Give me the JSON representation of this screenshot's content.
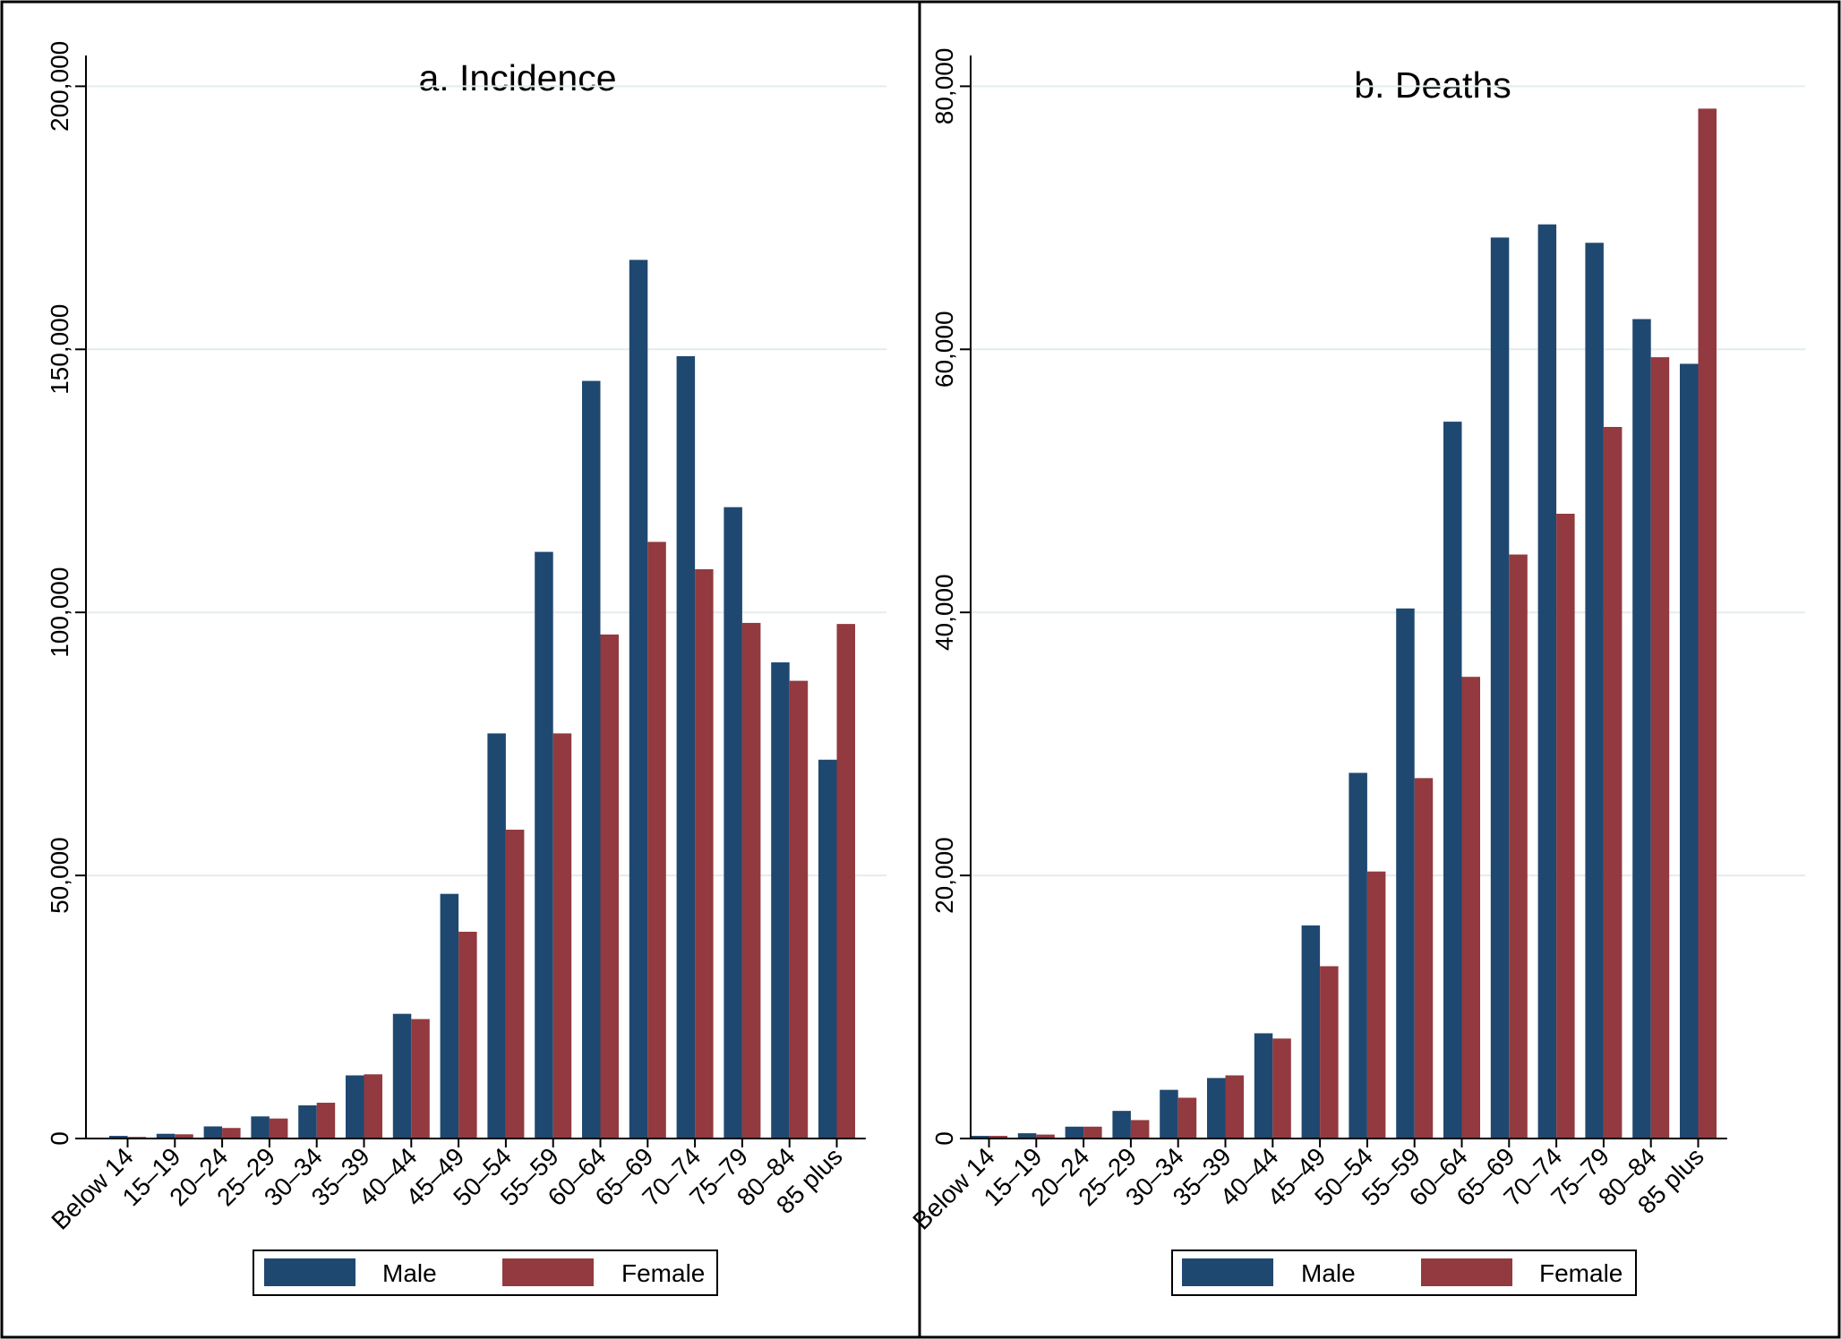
{
  "figure": {
    "colors": {
      "male": "#1f4870",
      "female": "#923a3f",
      "grid": "#e3ecee",
      "frame": "#000000"
    }
  },
  "chart_data": [
    {
      "type": "bar",
      "title": "a. Incidence",
      "xlabel": "",
      "ylabel": "",
      "categories": [
        "Below 14",
        "15–19",
        "20–24",
        "25–29",
        "30–34",
        "35–39",
        "40–44",
        "45–49",
        "50–54",
        "55–59",
        "60–64",
        "65–69",
        "70–74",
        "75–79",
        "80–84",
        "85 plus"
      ],
      "series": [
        {
          "name": "Male",
          "values": [
            500,
            900,
            2300,
            4200,
            6300,
            12000,
            23700,
            46500,
            77000,
            111500,
            144000,
            167000,
            148700,
            120000,
            90500,
            72000
          ]
        },
        {
          "name": "Female",
          "values": [
            300,
            800,
            2000,
            3800,
            6800,
            12200,
            22700,
            39300,
            58700,
            77000,
            95800,
            113400,
            108200,
            98000,
            87000,
            97800
          ]
        }
      ],
      "ylim": [
        0,
        205000
      ],
      "yticks": [
        0,
        50000,
        100000,
        150000,
        200000
      ],
      "ytick_labels": [
        "0",
        "50,000",
        "100,000",
        "150,000",
        "200,000"
      ],
      "grid": true,
      "legend": {
        "position": "bottom",
        "labels": [
          "Male",
          "Female"
        ]
      }
    },
    {
      "type": "bar",
      "title": "b. Deaths",
      "xlabel": "",
      "ylabel": "",
      "categories": [
        "Below 14",
        "15–19",
        "20–24",
        "25–29",
        "30–34",
        "35–39",
        "40–44",
        "45–49",
        "50–54",
        "55–59",
        "60–64",
        "65–69",
        "70–74",
        "75–79",
        "80–84",
        "85 plus"
      ],
      "series": [
        {
          "name": "Male",
          "values": [
            200,
            400,
            900,
            2100,
            3700,
            4600,
            8000,
            16200,
            27800,
            40300,
            54500,
            68500,
            69500,
            68100,
            62300,
            58900
          ]
        },
        {
          "name": "Female",
          "values": [
            200,
            300,
            900,
            1400,
            3100,
            4800,
            7600,
            13100,
            20300,
            27400,
            35100,
            44400,
            47500,
            54100,
            59400,
            78300
          ]
        }
      ],
      "ylim": [
        0,
        82000
      ],
      "yticks": [
        0,
        20000,
        40000,
        60000,
        80000
      ],
      "ytick_labels": [
        "0",
        "20,000",
        "40,000",
        "60,000",
        "80,000"
      ],
      "grid": true,
      "legend": {
        "position": "bottom",
        "labels": [
          "Male",
          "Female"
        ]
      }
    }
  ]
}
